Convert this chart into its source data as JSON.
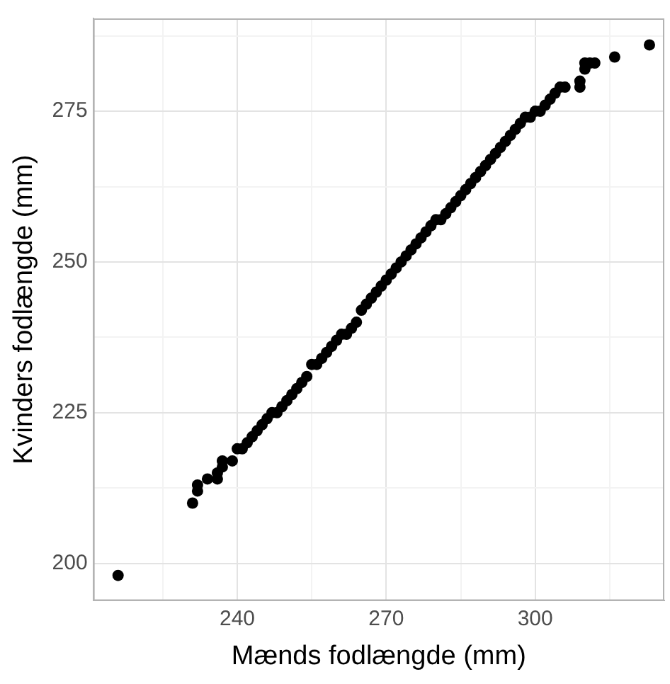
{
  "chart_data": {
    "type": "scatter",
    "xlabel": "Mænds fodlængde (mm)",
    "ylabel": "Kvinders fodlængde (mm)",
    "xlim": [
      211,
      326
    ],
    "ylim": [
      193.8,
      290.4
    ],
    "xticks": [
      {
        "value": 225,
        "label": null
      },
      240,
      {
        "value": 255,
        "label": null
      },
      270,
      {
        "value": 285,
        "label": null
      },
      300,
      {
        "value": 315,
        "label": null
      }
    ],
    "yticks": [
      200,
      {
        "value": 212.5,
        "label": null
      },
      225,
      {
        "value": 237.5,
        "label": null
      },
      250,
      {
        "value": 262.5,
        "label": null
      },
      275,
      {
        "value": 287.5,
        "label": null
      }
    ],
    "grid": true,
    "marker": "circle",
    "legend": false,
    "series": [
      {
        "color": "#000000",
        "x": [
          216,
          231,
          232,
          232,
          234,
          236,
          236,
          237,
          237,
          239,
          240,
          241,
          242,
          243,
          244,
          245,
          246,
          247,
          248,
          249,
          250,
          251,
          252,
          253,
          254,
          255,
          256,
          257,
          258,
          259,
          260,
          261,
          262,
          263,
          264,
          265,
          266,
          267,
          268,
          269,
          270,
          271,
          272,
          273,
          274,
          275,
          276,
          277,
          278,
          279,
          280,
          281,
          282,
          283,
          284,
          285,
          286,
          287,
          288,
          289,
          290,
          291,
          292,
          293,
          294,
          295,
          296,
          297,
          298,
          299,
          300,
          301,
          302,
          303,
          304,
          305,
          306,
          309,
          309,
          310,
          310,
          311,
          312,
          316,
          323
        ],
        "values": [
          198,
          210,
          212,
          213,
          214,
          214,
          215,
          216,
          217,
          217,
          219,
          219,
          220,
          221,
          222,
          223,
          224,
          225,
          225,
          226,
          227,
          228,
          229,
          230,
          231,
          233,
          233,
          234,
          235,
          236,
          237,
          238,
          238,
          239,
          240,
          242,
          243,
          244,
          245,
          246,
          247,
          248,
          249,
          250,
          251,
          252,
          253,
          254,
          255,
          256,
          257,
          257,
          258,
          259,
          260,
          261,
          262,
          263,
          264,
          265,
          266,
          267,
          268,
          269,
          270,
          271,
          272,
          273,
          274,
          274,
          275,
          275,
          276,
          277,
          278,
          279,
          279,
          279,
          280,
          282,
          283,
          283,
          283,
          284,
          286
        ]
      }
    ]
  }
}
